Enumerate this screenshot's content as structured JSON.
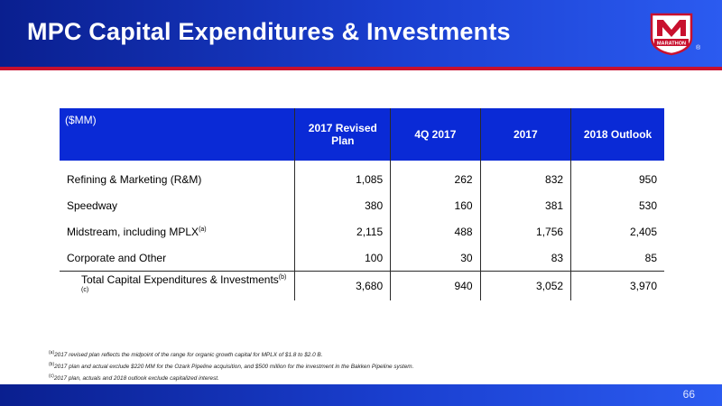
{
  "header": {
    "title": "MPC Capital Expenditures & Investments",
    "logo_text": "MARATHON",
    "logo_registered": "®",
    "colors": {
      "band": "#1a3fd0",
      "stripe": "#c8102e",
      "logo_red": "#c8102e"
    }
  },
  "table": {
    "unit_label": "($MM)",
    "columns": [
      "2017 Revised Plan",
      "4Q 2017",
      "2017",
      "2018 Outlook"
    ],
    "header_color": "#0a2ad6",
    "rows": [
      {
        "label": "Refining & Marketing (R&M)",
        "sup": "",
        "values": [
          "1,085",
          "262",
          "832",
          "950"
        ]
      },
      {
        "label": "Speedway",
        "sup": "",
        "values": [
          "380",
          "160",
          "381",
          "530"
        ]
      },
      {
        "label": "Midstream, including MPLX",
        "sup": "(a)",
        "values": [
          "2,115",
          "488",
          "1,756",
          "2,405"
        ]
      },
      {
        "label": "Corporate and Other",
        "sup": "",
        "values": [
          "100",
          "30",
          "83",
          "85"
        ]
      }
    ],
    "total": {
      "label": "Total Capital Expenditures & Investments",
      "sup": "(b)(c)",
      "values": [
        "3,680",
        "940",
        "3,052",
        "3,970"
      ]
    }
  },
  "footnotes": [
    {
      "mark": "(a)",
      "text": "2017 revised plan reflects the midpoint of the range for organic growth capital for MPLX of $1.8 to $2.0 B."
    },
    {
      "mark": "(b)",
      "text": "2017 plan and actual exclude $220 MM for the Ozark Pipeline acquisition, and $500 million for the investment in the Bakken Pipeline system."
    },
    {
      "mark": "(c)",
      "text": "2017 plan, actuals and 2018 outlook exclude capitalized interest."
    }
  ],
  "footer": {
    "page_number": "66"
  }
}
